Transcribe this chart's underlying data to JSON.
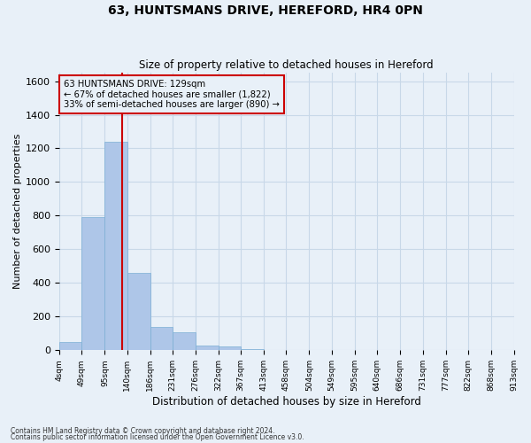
{
  "title": "63, HUNTSMANS DRIVE, HEREFORD, HR4 0PN",
  "subtitle": "Size of property relative to detached houses in Hereford",
  "xlabel": "Distribution of detached houses by size in Hereford",
  "ylabel": "Number of detached properties",
  "footnote1": "Contains HM Land Registry data © Crown copyright and database right 2024.",
  "footnote2": "Contains public sector information licensed under the Open Government Licence v3.0.",
  "bin_labels": [
    "4sqm",
    "49sqm",
    "95sqm",
    "140sqm",
    "186sqm",
    "231sqm",
    "276sqm",
    "322sqm",
    "367sqm",
    "413sqm",
    "458sqm",
    "504sqm",
    "549sqm",
    "595sqm",
    "640sqm",
    "686sqm",
    "731sqm",
    "777sqm",
    "822sqm",
    "868sqm",
    "913sqm"
  ],
  "bar_values": [
    50,
    790,
    1240,
    460,
    140,
    105,
    30,
    25,
    5,
    0,
    0,
    0,
    0,
    0,
    0,
    0,
    0,
    0,
    0,
    0
  ],
  "bar_color": "#aec6e8",
  "bar_edge_color": "#7bafd4",
  "grid_color": "#c8d8e8",
  "bg_color": "#e8f0f8",
  "vline_x": 129,
  "vline_color": "#cc0000",
  "annotation_line1": "63 HUNTSMANS DRIVE: 129sqm",
  "annotation_line2": "← 67% of detached houses are smaller (1,822)",
  "annotation_line3": "33% of semi-detached houses are larger (890) →",
  "annotation_box_color": "#cc0000",
  "ylim": [
    0,
    1650
  ],
  "yticks": [
    0,
    200,
    400,
    600,
    800,
    1000,
    1200,
    1400,
    1600
  ],
  "bin_starts": [
    4,
    49,
    95,
    140,
    186,
    231,
    276,
    322,
    367,
    413,
    458,
    504,
    549,
    595,
    640,
    686,
    731,
    777,
    822,
    868,
    913
  ]
}
